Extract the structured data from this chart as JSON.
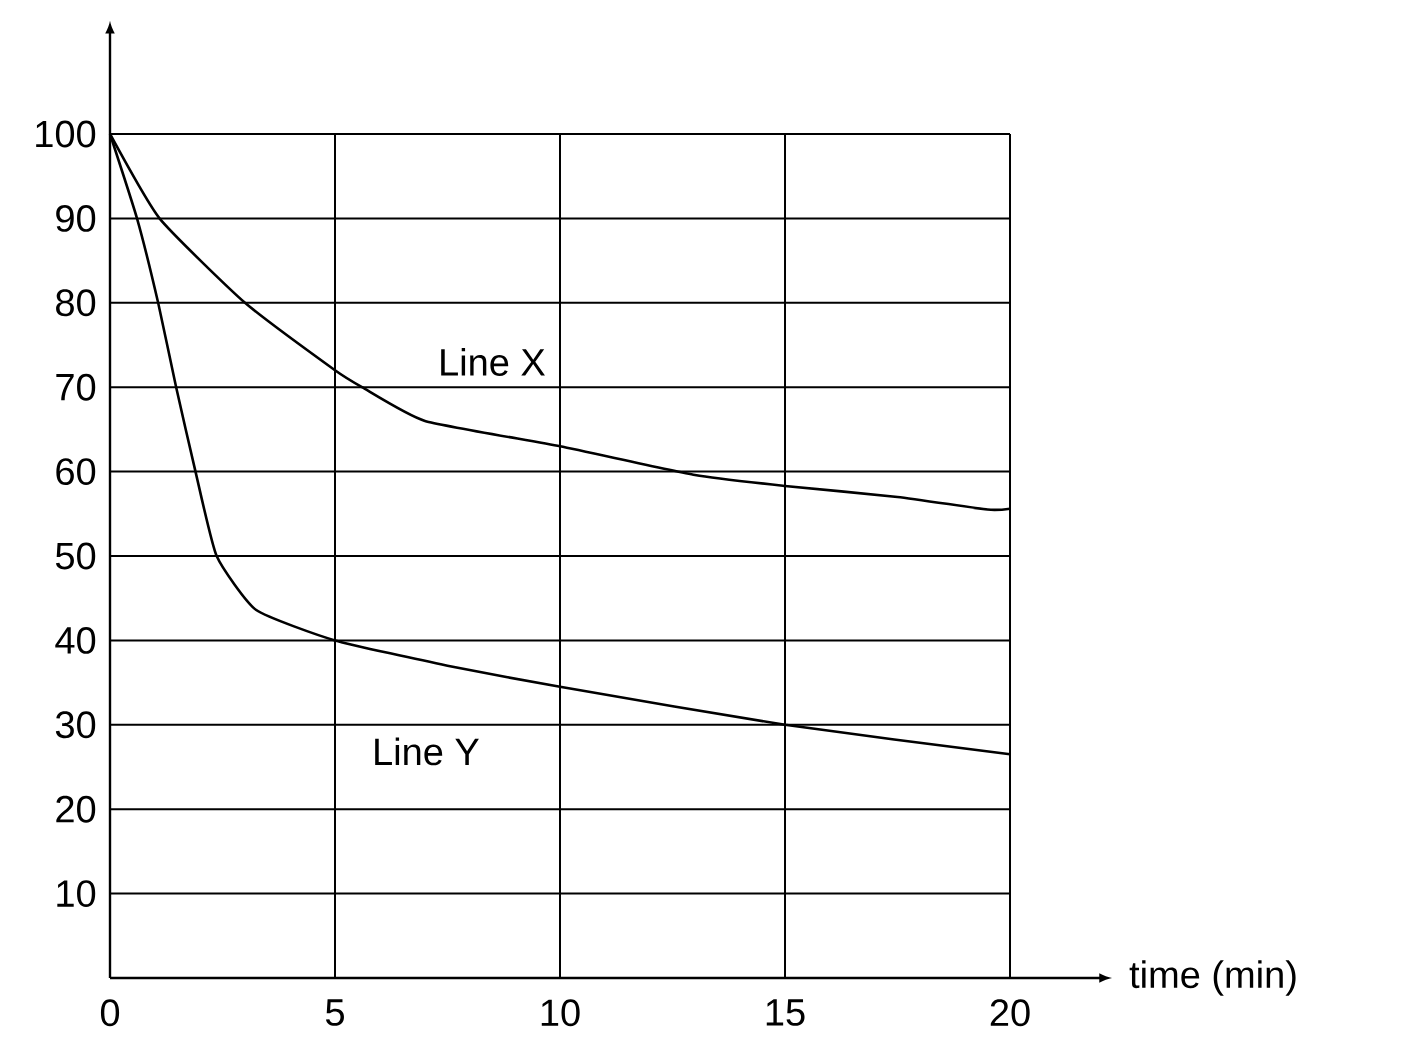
{
  "chart_data": {
    "type": "line",
    "xlabel": "time (min)",
    "xlim": [
      0,
      22
    ],
    "ylim": [
      0,
      112
    ],
    "xticks": [
      0,
      5,
      10,
      15,
      20
    ],
    "yticks": [
      10,
      20,
      30,
      40,
      50,
      60,
      70,
      80,
      90,
      100
    ],
    "grid": true,
    "marker": "none",
    "line_style": "solid",
    "series": [
      {
        "name": "Line X",
        "color": "#000000",
        "x": [
          0,
          1.1,
          3.0,
          5,
          5.6,
          7,
          10,
          13,
          15,
          17.5,
          19.5,
          20
        ],
        "values": [
          100,
          90,
          80,
          72,
          70,
          66,
          63,
          59.6,
          58.3,
          57,
          55.5,
          55.6
        ]
      },
      {
        "name": "Line Y",
        "color": "#000000",
        "x": [
          0,
          0.6,
          1.07,
          1.47,
          1.9,
          2.37,
          3.25,
          5,
          7.5,
          10,
          15,
          20
        ],
        "values": [
          100,
          90,
          80,
          70,
          60,
          50,
          43.6,
          40,
          37,
          34.5,
          30,
          26.5
        ]
      }
    ]
  }
}
